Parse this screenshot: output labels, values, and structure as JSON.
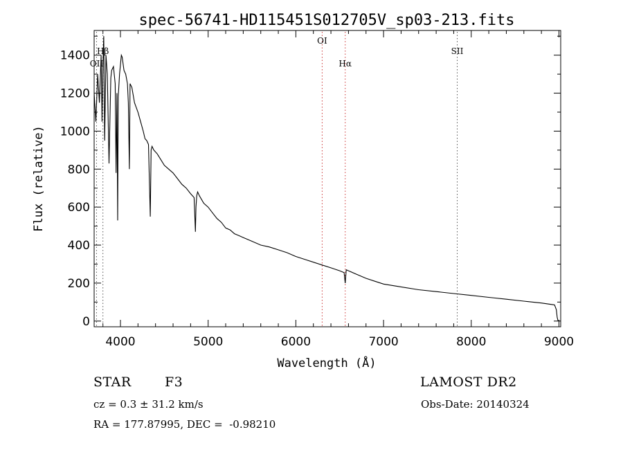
{
  "chart_data": {
    "type": "line",
    "title": "spec-56741-HD115451S012705V_sp03-213.fits",
    "xlabel": "Wavelength (Å)",
    "ylabel": "Flux (relative)",
    "xlim": [
      3700,
      9020
    ],
    "ylim": [
      -30,
      1530
    ],
    "x_ticks": [
      4000,
      5000,
      6000,
      7000,
      8000,
      9000
    ],
    "y_ticks": [
      0,
      200,
      400,
      600,
      800,
      1000,
      1200,
      1400
    ],
    "grid": false,
    "legend": "none",
    "line_color": "#000000",
    "line_markers": [
      {
        "label": "OII",
        "wavelength": 3727,
        "color": "#555555"
      },
      {
        "label": "Hβ",
        "wavelength": 3800,
        "color": "#555555"
      },
      {
        "label": "OI",
        "wavelength": 6300,
        "color": "#cc3333"
      },
      {
        "label": "Hα",
        "wavelength": 6563,
        "color": "#cc3333"
      },
      {
        "label": "SII",
        "wavelength": 7840,
        "color": "#555555"
      }
    ],
    "series": [
      {
        "x": [
          3700,
          3720,
          3740,
          3760,
          3780,
          3790,
          3800,
          3810,
          3820,
          3835,
          3850,
          3870,
          3890,
          3900,
          3920,
          3940,
          3950,
          3960,
          3968,
          3975,
          3990,
          4000,
          4010,
          4020,
          4040,
          4060,
          4080,
          4090,
          4102,
          4110,
          4130,
          4160,
          4200,
          4230,
          4260,
          4280,
          4300,
          4320,
          4340,
          4350,
          4360,
          4380,
          4420,
          4460,
          4500,
          4550,
          4600,
          4650,
          4700,
          4750,
          4800,
          4840,
          4855,
          4861,
          4870,
          4880,
          4900,
          4950,
          5000,
          5050,
          5100,
          5150,
          5200,
          5250,
          5300,
          5350,
          5400,
          5500,
          5600,
          5700,
          5800,
          5900,
          6000,
          6100,
          6200,
          6300,
          6400,
          6500,
          6550,
          6563,
          6575,
          6600,
          6700,
          6800,
          6900,
          7000,
          7200,
          7400,
          7600,
          7800,
          8000,
          8200,
          8400,
          8600,
          8800,
          8950,
          8970,
          8980,
          8990
        ],
        "y": [
          1200,
          1050,
          1300,
          1150,
          1400,
          1050,
          1350,
          1500,
          950,
          1400,
          1300,
          830,
          1280,
          1320,
          1340,
          1250,
          780,
          1200,
          530,
          1180,
          1300,
          1350,
          1400,
          1390,
          1320,
          1300,
          1250,
          1150,
          800,
          1250,
          1230,
          1150,
          1100,
          1050,
          1000,
          960,
          950,
          930,
          550,
          900,
          920,
          900,
          880,
          850,
          820,
          800,
          780,
          750,
          720,
          700,
          670,
          650,
          470,
          600,
          660,
          680,
          660,
          620,
          600,
          570,
          540,
          520,
          490,
          480,
          460,
          450,
          440,
          420,
          400,
          390,
          375,
          360,
          340,
          325,
          310,
          295,
          280,
          265,
          255,
          200,
          270,
          265,
          245,
          225,
          210,
          195,
          180,
          165,
          155,
          145,
          135,
          125,
          115,
          105,
          95,
          85,
          60,
          20,
          0
        ]
      }
    ]
  },
  "info": {
    "class_label": "STAR",
    "subclass_label": "F3",
    "survey": "LAMOST DR2",
    "redshift": "cz = 0.3 ± 31.2 km/s",
    "obs_date": "Obs-Date: 20140324",
    "coords": "RA = 177.87995, DEC =  -0.98210"
  }
}
